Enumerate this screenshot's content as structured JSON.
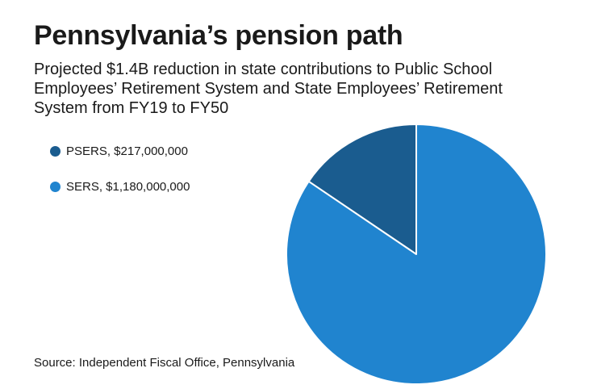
{
  "title": "Pennsylvania’s pension path",
  "subtitle": "Projected $1.4B reduction in state contributions to Public School Employees’ Retirement System and State Employees’ Retirement System from FY19 to FY50",
  "source": "Source: Independent Fiscal Office, Pennsylvania",
  "chart_data": {
    "type": "pie",
    "slices": [
      {
        "label": "PSERS, $217,000,000",
        "name": "PSERS",
        "value": 217000000,
        "color": "#1a5c8f"
      },
      {
        "label": "SERS, $1,180,000,000",
        "name": "SERS",
        "value": 1180000000,
        "color": "#2084cf"
      }
    ],
    "legend": "top-left"
  }
}
